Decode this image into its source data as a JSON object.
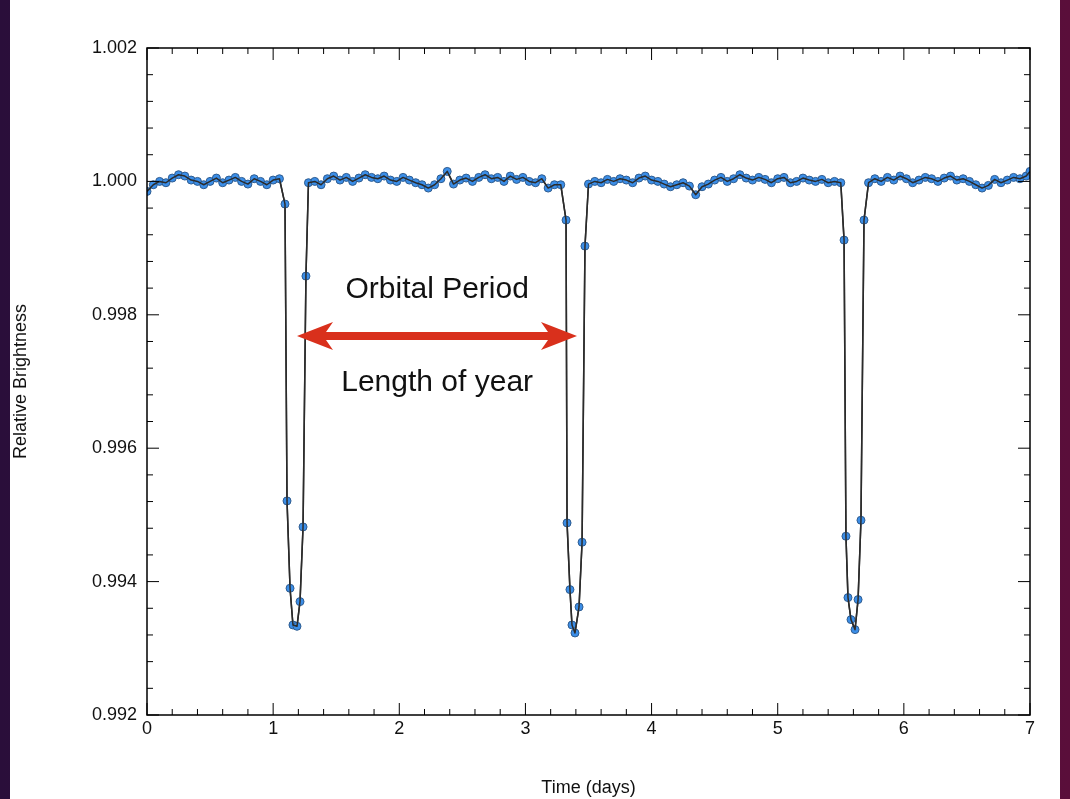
{
  "chart_data": {
    "type": "line",
    "xlabel": "Time (days)",
    "ylabel": "Relative Brightness",
    "xlim": [
      0,
      7
    ],
    "xticks": [
      0,
      1,
      2,
      3,
      4,
      5,
      6,
      7
    ],
    "ylim": [
      0.992,
      1.002
    ],
    "yticks": [
      0.992,
      0.994,
      0.996,
      0.998,
      {
        "value": 1.0,
        "label": "1.000"
      },
      1.002
    ],
    "grid": false,
    "legend": false,
    "marker": "circle",
    "line_style": "solid",
    "annotations": [
      "Orbital Period",
      "Length of year"
    ],
    "series": [
      {
        "color": "#3b8ee8",
        "x": [
          0,
          0.05,
          0.1,
          0.15,
          0.2,
          0.25,
          0.3,
          0.35,
          0.4,
          0.45,
          0.5,
          0.55,
          0.6,
          0.65,
          0.7,
          0.75,
          0.8,
          0.85,
          0.9,
          0.95,
          1.0,
          1.05,
          1.094,
          1.11,
          1.134,
          1.157,
          1.189,
          1.213,
          1.237,
          1.26,
          1.28,
          1.33,
          1.38,
          1.43,
          1.48,
          1.53,
          1.58,
          1.63,
          1.68,
          1.73,
          1.78,
          1.83,
          1.88,
          1.93,
          1.98,
          2.03,
          2.08,
          2.13,
          2.18,
          2.23,
          2.28,
          2.33,
          2.38,
          2.43,
          2.48,
          2.53,
          2.58,
          2.63,
          2.68,
          2.73,
          2.78,
          2.83,
          2.88,
          2.93,
          2.98,
          3.03,
          3.08,
          3.13,
          3.18,
          3.23,
          3.28,
          3.322,
          3.33,
          3.353,
          3.369,
          3.393,
          3.425,
          3.449,
          3.472,
          3.5,
          3.55,
          3.6,
          3.65,
          3.7,
          3.75,
          3.8,
          3.85,
          3.9,
          3.95,
          4.0,
          4.05,
          4.1,
          4.15,
          4.2,
          4.25,
          4.3,
          4.35,
          4.4,
          4.45,
          4.5,
          4.55,
          4.6,
          4.65,
          4.7,
          4.75,
          4.8,
          4.85,
          4.9,
          4.95,
          5.0,
          5.05,
          5.1,
          5.15,
          5.2,
          5.25,
          5.3,
          5.35,
          5.4,
          5.45,
          5.5,
          5.526,
          5.541,
          5.557,
          5.581,
          5.613,
          5.637,
          5.66,
          5.684,
          5.72,
          5.77,
          5.82,
          5.87,
          5.92,
          5.97,
          6.02,
          6.07,
          6.12,
          6.17,
          6.22,
          6.27,
          6.32,
          6.37,
          6.42,
          6.47,
          6.52,
          6.57,
          6.62,
          6.67,
          6.72,
          6.77,
          6.82,
          6.87,
          6.92,
          6.97,
          7.0
        ],
        "values": [
          0.99985,
          0.99995,
          1.0,
          0.99998,
          1.00005,
          1.0001,
          1.00008,
          1.00002,
          1.0,
          0.99995,
          1.0,
          1.00005,
          0.99998,
          1.00002,
          1.00006,
          1.0,
          0.99996,
          1.00004,
          1.0,
          0.99995,
          1.00002,
          1.00004,
          0.99966,
          0.99521,
          0.9939,
          0.99335,
          0.99333,
          0.9937,
          0.99482,
          0.99858,
          0.99998,
          1.0,
          0.99995,
          1.00004,
          1.00008,
          1.00002,
          1.00006,
          1.0,
          1.00005,
          1.0001,
          1.00006,
          1.00004,
          1.00008,
          1.00002,
          1.0,
          1.00006,
          1.00002,
          0.99998,
          0.99995,
          0.9999,
          0.99995,
          1.00004,
          1.00015,
          0.99996,
          1.00002,
          1.00005,
          1.0,
          1.00006,
          1.0001,
          1.00004,
          1.00006,
          1.0,
          1.00008,
          1.00003,
          1.00006,
          1.0,
          0.99998,
          1.00004,
          0.9999,
          0.99995,
          0.99995,
          0.99942,
          0.99488,
          0.99388,
          0.99335,
          0.99323,
          0.99362,
          0.99459,
          0.99903,
          0.99996,
          1.0,
          0.99998,
          1.00003,
          1.0,
          1.00004,
          1.00002,
          0.99998,
          1.00005,
          1.00008,
          1.00002,
          1.0,
          0.99996,
          0.99992,
          0.99995,
          0.99998,
          0.99993,
          0.9998,
          0.99992,
          0.99996,
          1.00002,
          1.00006,
          1.0,
          1.00004,
          1.0001,
          1.00005,
          1.00002,
          1.00006,
          1.00003,
          0.99998,
          1.00004,
          1.00006,
          0.99998,
          1.0,
          1.00005,
          1.00002,
          1.0,
          1.00003,
          0.99998,
          1.0,
          0.99998,
          0.99912,
          0.99468,
          0.99376,
          0.99343,
          0.99328,
          0.99373,
          0.99492,
          0.99942,
          0.99998,
          1.00004,
          1.0,
          1.00006,
          1.00002,
          1.00008,
          1.00004,
          0.99998,
          1.00002,
          1.00006,
          1.00004,
          1.0,
          1.00005,
          1.00008,
          1.00002,
          1.00004,
          1.0,
          0.99995,
          0.9999,
          0.99994,
          1.00003,
          0.99998,
          1.00002,
          1.00006,
          1.00004,
          1.00008,
          1.00015
        ]
      }
    ]
  }
}
